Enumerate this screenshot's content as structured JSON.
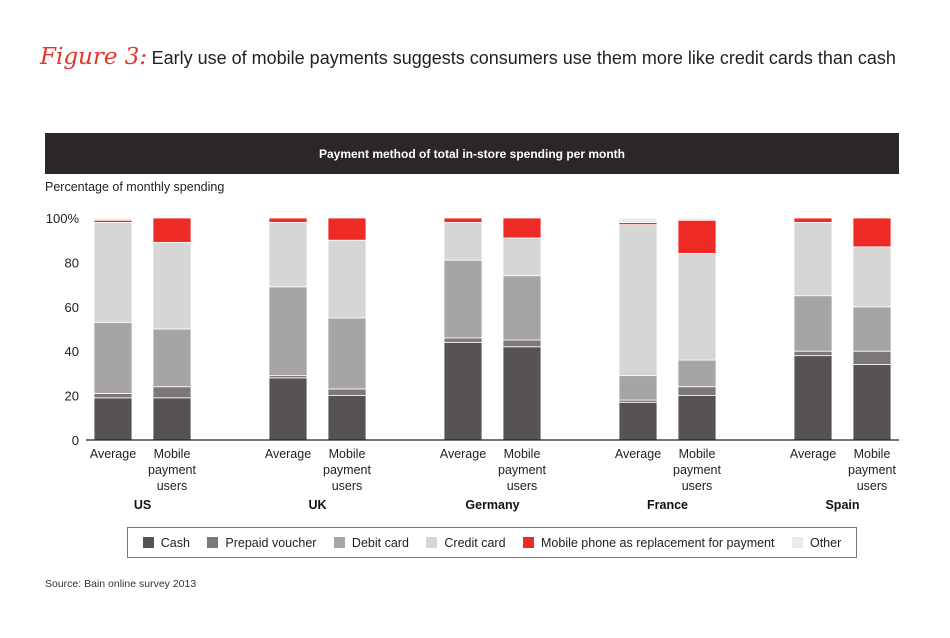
{
  "figure": {
    "label": "Figure 3:",
    "title": "Early use of mobile payments suggests consumers use them more like credit cards than cash"
  },
  "source": "Source: Bain online survey 2013",
  "chart_data": {
    "type": "bar",
    "stacked": true,
    "title": "Payment method of total in-store spending per month",
    "ylabel": "Percentage of monthly spending",
    "ylim": [
      0,
      100
    ],
    "yticks": [
      "0",
      "20",
      "40",
      "60",
      "80",
      "100%"
    ],
    "bar_labels": [
      "Average",
      "Mobile payment users"
    ],
    "groups": [
      "US",
      "UK",
      "Germany",
      "France",
      "Spain"
    ],
    "series": [
      {
        "name": "Cash",
        "color": "#575354",
        "values": [
          [
            19,
            19
          ],
          [
            28,
            20
          ],
          [
            44,
            42
          ],
          [
            17,
            20
          ],
          [
            38,
            34
          ]
        ]
      },
      {
        "name": "Prepaid voucher",
        "color": "#7c7879",
        "values": [
          [
            2,
            5
          ],
          [
            1,
            3
          ],
          [
            2,
            3
          ],
          [
            1,
            4
          ],
          [
            2,
            6
          ]
        ]
      },
      {
        "name": "Debit card",
        "color": "#a6a4a5",
        "values": [
          [
            32,
            26
          ],
          [
            40,
            32
          ],
          [
            35,
            29
          ],
          [
            11,
            12
          ],
          [
            25,
            20
          ]
        ]
      },
      {
        "name": "Credit card",
        "color": "#d7d6d7",
        "values": [
          [
            45,
            39
          ],
          [
            29,
            35
          ],
          [
            17,
            17
          ],
          [
            68,
            48
          ],
          [
            33,
            27
          ]
        ]
      },
      {
        "name": "Mobile phone as replacement for payment",
        "color": "#ee2a26",
        "values": [
          [
            1,
            11
          ],
          [
            2,
            10
          ],
          [
            2,
            9
          ],
          [
            1,
            15
          ],
          [
            2,
            13
          ]
        ]
      },
      {
        "name": "Other",
        "color": "#ebebeb",
        "values": [
          [
            1,
            0
          ],
          [
            0,
            0
          ],
          [
            0,
            0
          ],
          [
            2,
            1
          ],
          [
            0,
            0
          ]
        ]
      }
    ],
    "grid": false,
    "legend": "bottom"
  }
}
